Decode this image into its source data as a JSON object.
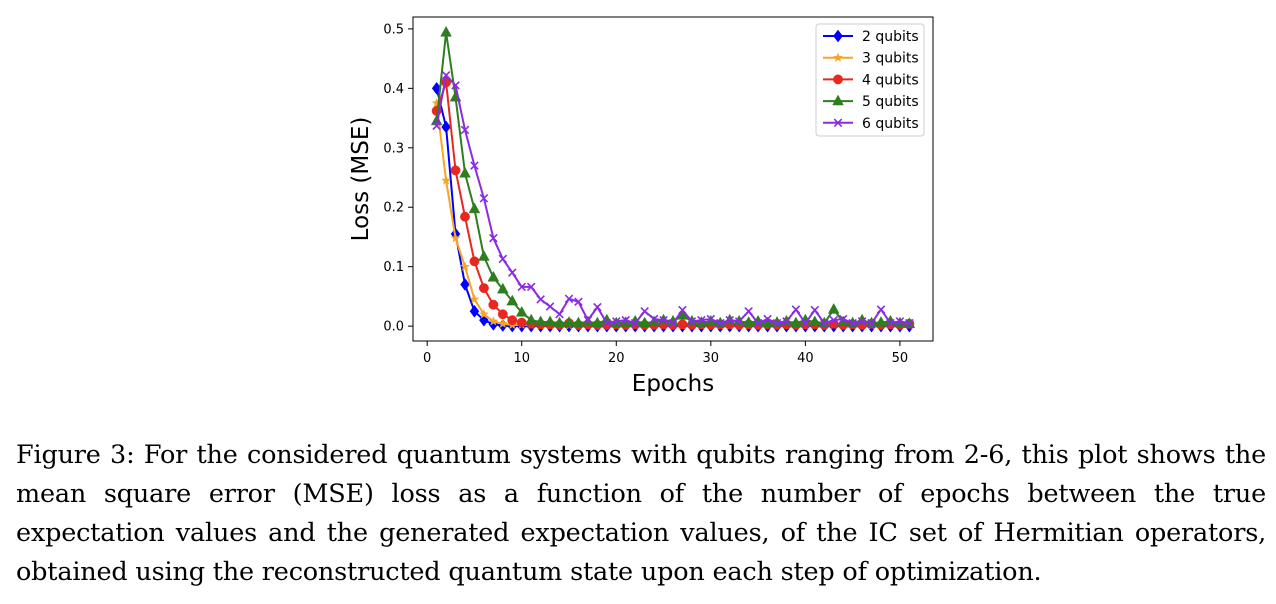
{
  "chart_data": {
    "type": "line",
    "xlabel": "Epochs",
    "ylabel": "Loss (MSE)",
    "xlim": [
      -1.5,
      53.5
    ],
    "ylim": [
      -0.025,
      0.52
    ],
    "xticks": [
      0,
      10,
      20,
      30,
      40,
      50
    ],
    "yticks": [
      0.0,
      0.1,
      0.2,
      0.3,
      0.4,
      0.5
    ],
    "ytick_labels": [
      "0.0",
      "0.1",
      "0.2",
      "0.3",
      "0.4",
      "0.5"
    ],
    "legend_position": "top-right",
    "grid": false,
    "x": [
      1,
      2,
      3,
      4,
      5,
      6,
      7,
      8,
      9,
      10,
      11,
      12,
      13,
      14,
      15,
      16,
      17,
      18,
      19,
      20,
      21,
      22,
      23,
      24,
      25,
      26,
      27,
      28,
      29,
      30,
      31,
      32,
      33,
      34,
      35,
      36,
      37,
      38,
      39,
      40,
      41,
      42,
      43,
      44,
      45,
      46,
      47,
      48,
      49,
      50,
      51
    ],
    "series": [
      {
        "name": "2 qubits",
        "color": "#0000ff",
        "marker": "diamond",
        "values": [
          0.4,
          0.335,
          0.155,
          0.07,
          0.025,
          0.01,
          0.003,
          0.001,
          0.0,
          0.0,
          0.0,
          0.0,
          0.0,
          0.0,
          0.0,
          0.0,
          0.0,
          0.0,
          0.0,
          0.0,
          0.0,
          0.0,
          0.0,
          0.0,
          0.0,
          0.0,
          0.0,
          0.0,
          0.0,
          0.0,
          0.0,
          0.0,
          0.0,
          0.0,
          0.0,
          0.0,
          0.0,
          0.0,
          0.0,
          0.0,
          0.0,
          0.0,
          0.0,
          0.0,
          0.0,
          0.0,
          0.0,
          0.0,
          0.0,
          0.0,
          0.0
        ]
      },
      {
        "name": "3 qubits",
        "color": "#f5a623",
        "marker": "star",
        "values": [
          0.375,
          0.245,
          0.148,
          0.1,
          0.045,
          0.02,
          0.008,
          0.004,
          0.002,
          0.002,
          0.002,
          0.001,
          0.001,
          0.002,
          0.001,
          0.002,
          0.001,
          0.001,
          0.002,
          0.001,
          0.002,
          0.001,
          0.001,
          0.002,
          0.001,
          0.002,
          0.001,
          0.002,
          0.001,
          0.002,
          0.001,
          0.001,
          0.002,
          0.001,
          0.001,
          0.002,
          0.001,
          0.002,
          0.001,
          0.001,
          0.002,
          0.001,
          0.002,
          0.001,
          0.001,
          0.002,
          0.001,
          0.001,
          0.002,
          0.001,
          0.002
        ]
      },
      {
        "name": "4 qubits",
        "color": "#e8281e",
        "marker": "circle",
        "values": [
          0.362,
          0.41,
          0.262,
          0.184,
          0.109,
          0.064,
          0.036,
          0.02,
          0.01,
          0.006,
          0.004,
          0.003,
          0.003,
          0.002,
          0.005,
          0.002,
          0.003,
          0.002,
          0.002,
          0.003,
          0.002,
          0.003,
          0.002,
          0.002,
          0.003,
          0.002,
          0.003,
          0.002,
          0.003,
          0.002,
          0.003,
          0.003,
          0.002,
          0.003,
          0.002,
          0.003,
          0.002,
          0.003,
          0.002,
          0.003,
          0.003,
          0.002,
          0.004,
          0.002,
          0.003,
          0.002,
          0.004,
          0.002,
          0.003,
          0.002,
          0.004
        ]
      },
      {
        "name": "5 qubits",
        "color": "#2e7d1f",
        "marker": "triangle",
        "values": [
          0.345,
          0.494,
          0.385,
          0.257,
          0.197,
          0.117,
          0.082,
          0.062,
          0.042,
          0.023,
          0.01,
          0.007,
          0.007,
          0.005,
          0.006,
          0.005,
          0.007,
          0.005,
          0.01,
          0.005,
          0.006,
          0.008,
          0.005,
          0.007,
          0.01,
          0.008,
          0.018,
          0.008,
          0.006,
          0.008,
          0.005,
          0.01,
          0.008,
          0.006,
          0.008,
          0.005,
          0.006,
          0.008,
          0.005,
          0.01,
          0.007,
          0.005,
          0.028,
          0.007,
          0.005,
          0.01,
          0.005,
          0.006,
          0.008,
          0.005,
          0.004
        ]
      },
      {
        "name": "6 qubits",
        "color": "#8a2be2",
        "marker": "x",
        "values": [
          0.337,
          0.422,
          0.405,
          0.33,
          0.27,
          0.215,
          0.148,
          0.113,
          0.09,
          0.066,
          0.066,
          0.045,
          0.033,
          0.02,
          0.046,
          0.041,
          0.01,
          0.032,
          0.005,
          0.008,
          0.01,
          0.005,
          0.025,
          0.012,
          0.01,
          0.005,
          0.027,
          0.008,
          0.01,
          0.012,
          0.005,
          0.01,
          0.008,
          0.025,
          0.005,
          0.012,
          0.005,
          0.008,
          0.028,
          0.005,
          0.027,
          0.005,
          0.01,
          0.012,
          0.005,
          0.008,
          0.005,
          0.028,
          0.005,
          0.008,
          0.005
        ]
      }
    ]
  },
  "caption": "Figure 3: For the considered quantum systems with qubits ranging from 2-6, this plot shows the mean square error (MSE) loss as a function of the number of epochs between the true expectation values and the generated expectation values, of the IC set of Hermitian operators, obtained using the reconstructed quantum state upon each step of optimization."
}
